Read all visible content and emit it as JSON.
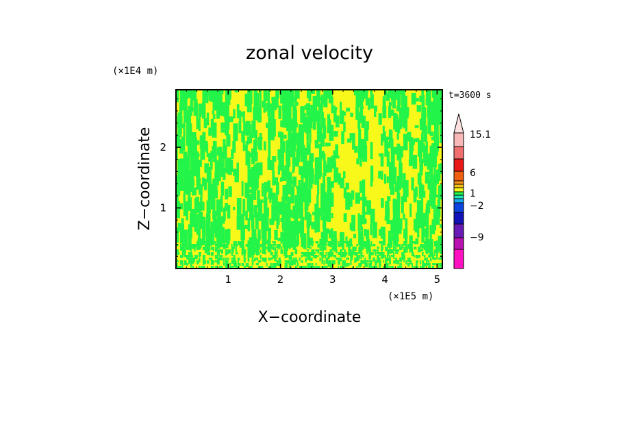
{
  "chart_data": {
    "type": "heatmap",
    "title": "zonal velocity",
    "xlabel": "X−coordinate",
    "ylabel": "Z−coordinate",
    "x_unit": "(×1E5 m)",
    "y_unit": "(×1E4 m)",
    "time_label": "t=3600 s",
    "xlim": [
      0,
      5.1
    ],
    "ylim": [
      0,
      2.95
    ],
    "x_ticks": [
      1,
      2,
      3,
      4,
      5
    ],
    "y_ticks": [
      1,
      2
    ],
    "x_tick_labels": [
      "1",
      "2",
      "3",
      "4",
      "5"
    ],
    "y_tick_labels": [
      "1",
      "2"
    ],
    "field_colors": {
      "low": "#22f44a",
      "high": "#f8f81a"
    },
    "colorbar": {
      "levels": [
        {
          "color": "#ff10c0",
          "range": "< -12"
        },
        {
          "color": "#b812b0",
          "range": "-12 to -9"
        },
        {
          "color": "#6a1ab4",
          "range": "-9 to -6"
        },
        {
          "color": "#1212b8",
          "range": "-6 to -4"
        },
        {
          "color": "#0c44e0",
          "range": "-4 to -2"
        },
        {
          "color": "#1aa8f0",
          "range": "-2 to -1"
        },
        {
          "color": "#20e8b4",
          "range": "-1 to 0"
        },
        {
          "color": "#22f44a",
          "range": "0 to 0.5"
        },
        {
          "color": "#f8f81a",
          "range": "0.5 to 1"
        },
        {
          "color": "#f8c01a",
          "range": "1 to 2"
        },
        {
          "color": "#f8901a",
          "range": "2 to 3"
        },
        {
          "color": "#f06010",
          "range": "3 to 6"
        },
        {
          "color": "#e81818",
          "range": "6 to 9"
        },
        {
          "color": "#f07070",
          "range": "9 to 12"
        },
        {
          "color": "#f8b8b8",
          "range": "12 to 15.1"
        },
        {
          "color": "#ffe0e0",
          "range": "> 15.1"
        }
      ],
      "labels": [
        "15.1",
        "6",
        "1",
        "−2",
        "−9"
      ]
    }
  }
}
